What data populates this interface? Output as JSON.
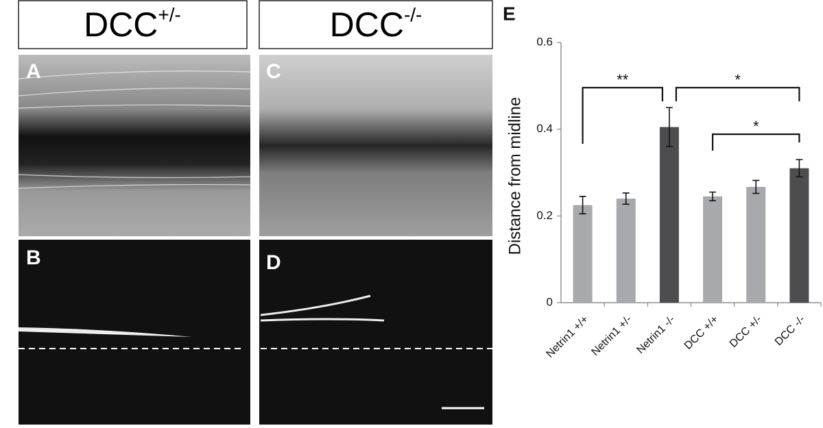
{
  "panels": {
    "left_header": {
      "base": "DCC",
      "sup": "+/-"
    },
    "right_header": {
      "base": "DCC",
      "sup": "-/-"
    },
    "letters": [
      "A",
      "B",
      "C",
      "D",
      "E"
    ]
  },
  "chart_data": {
    "type": "bar",
    "ylabel": "Distance from midline",
    "categories": [
      "Netrin1 +/+",
      "Netrin1 +/-",
      "Netrin1 -/-",
      "DCC +/+",
      "DCC +/-",
      "DCC -/-"
    ],
    "values": [
      0.225,
      0.24,
      0.405,
      0.245,
      0.267,
      0.31
    ],
    "errors": [
      0.02,
      0.013,
      0.045,
      0.01,
      0.015,
      0.02
    ],
    "colors": [
      "#a7a9ac",
      "#a7a9ac",
      "#4d4d4f",
      "#a7a9ac",
      "#a7a9ac",
      "#4d4d4f"
    ],
    "ylim": [
      0,
      0.6
    ],
    "yticks": [
      0,
      0.2,
      0.4,
      0.6
    ],
    "annotations": [
      "**",
      "*",
      "*"
    ]
  }
}
